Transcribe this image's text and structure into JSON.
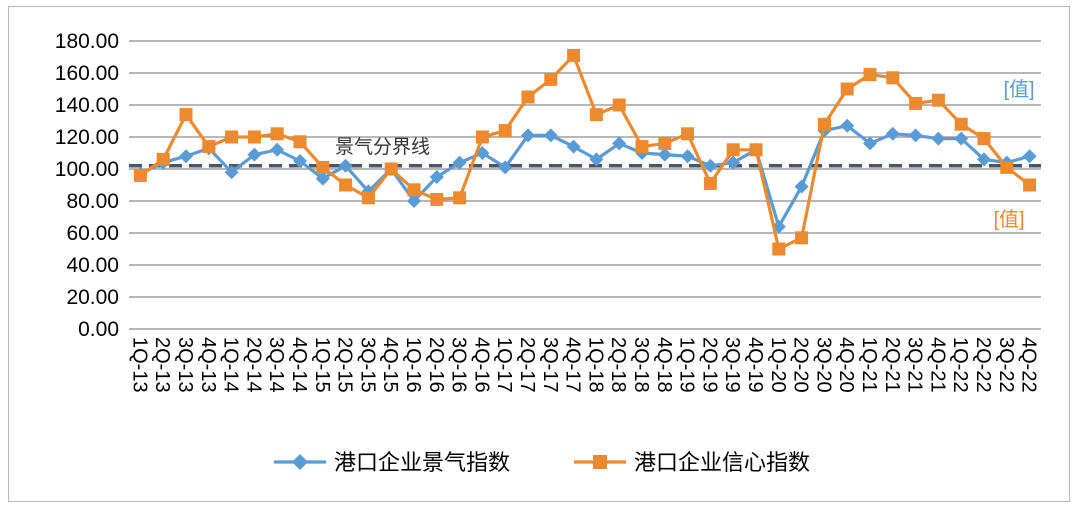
{
  "chart_data": {
    "type": "line",
    "title": "",
    "xlabel": "",
    "ylabel": "",
    "ylim": [
      0,
      180
    ],
    "ytick_step": 20,
    "ytick_labels": [
      "0.00",
      "20.00",
      "40.00",
      "60.00",
      "80.00",
      "100.00",
      "120.00",
      "140.00",
      "160.00",
      "180.00"
    ],
    "grid": true,
    "categories": [
      "1Q-13",
      "2Q-13",
      "3Q-13",
      "4Q-13",
      "1Q-14",
      "2Q-14",
      "3Q-14",
      "4Q-14",
      "1Q-15",
      "2Q-15",
      "3Q-15",
      "4Q-15",
      "1Q-16",
      "2Q-16",
      "3Q-16",
      "4Q-16",
      "1Q-17",
      "2Q-17",
      "3Q-17",
      "4Q-17",
      "1Q-18",
      "2Q-18",
      "3Q-18",
      "4Q-18",
      "1Q-19",
      "2Q-19",
      "3Q-19",
      "4Q-19",
      "1Q-20",
      "2Q-20",
      "3Q-20",
      "4Q-20",
      "1Q-21",
      "2Q-21",
      "3Q-21",
      "4Q-21",
      "1Q-22",
      "2Q-22",
      "3Q-22",
      "4Q-22"
    ],
    "series": [
      {
        "name": "港口企业景气指数",
        "color": "#5b9bd5",
        "marker": "diamond",
        "values": [
          97,
          104,
          108,
          113,
          98,
          109,
          112,
          105,
          94,
          102,
          86,
          100,
          80,
          95,
          104,
          110,
          101,
          121,
          121,
          114,
          106,
          116,
          110,
          109,
          108,
          102,
          104,
          112,
          64,
          89,
          124,
          127,
          116,
          122,
          121,
          119,
          119,
          106,
          104,
          108
        ]
      },
      {
        "name": "港口企业信心指数",
        "color": "#ed8a2f",
        "marker": "square",
        "values": [
          96,
          106,
          134,
          114,
          120,
          120,
          122,
          117,
          101,
          90,
          82,
          100,
          87,
          81,
          82,
          120,
          124,
          145,
          156,
          171,
          134,
          140,
          114,
          116,
          122,
          91,
          112,
          112,
          50,
          57,
          128,
          150,
          159,
          157,
          141,
          143,
          128,
          119,
          101,
          90
        ]
      }
    ],
    "reference_line": {
      "label": "景气分界线",
      "value": 102,
      "color": "#4a5568"
    },
    "annotations": [
      {
        "text": "[值]",
        "color": "#5b9bd5",
        "series": 0
      },
      {
        "text": "[值]",
        "color": "#ed8a2f",
        "series": 1
      }
    ],
    "legend_position": "bottom"
  }
}
